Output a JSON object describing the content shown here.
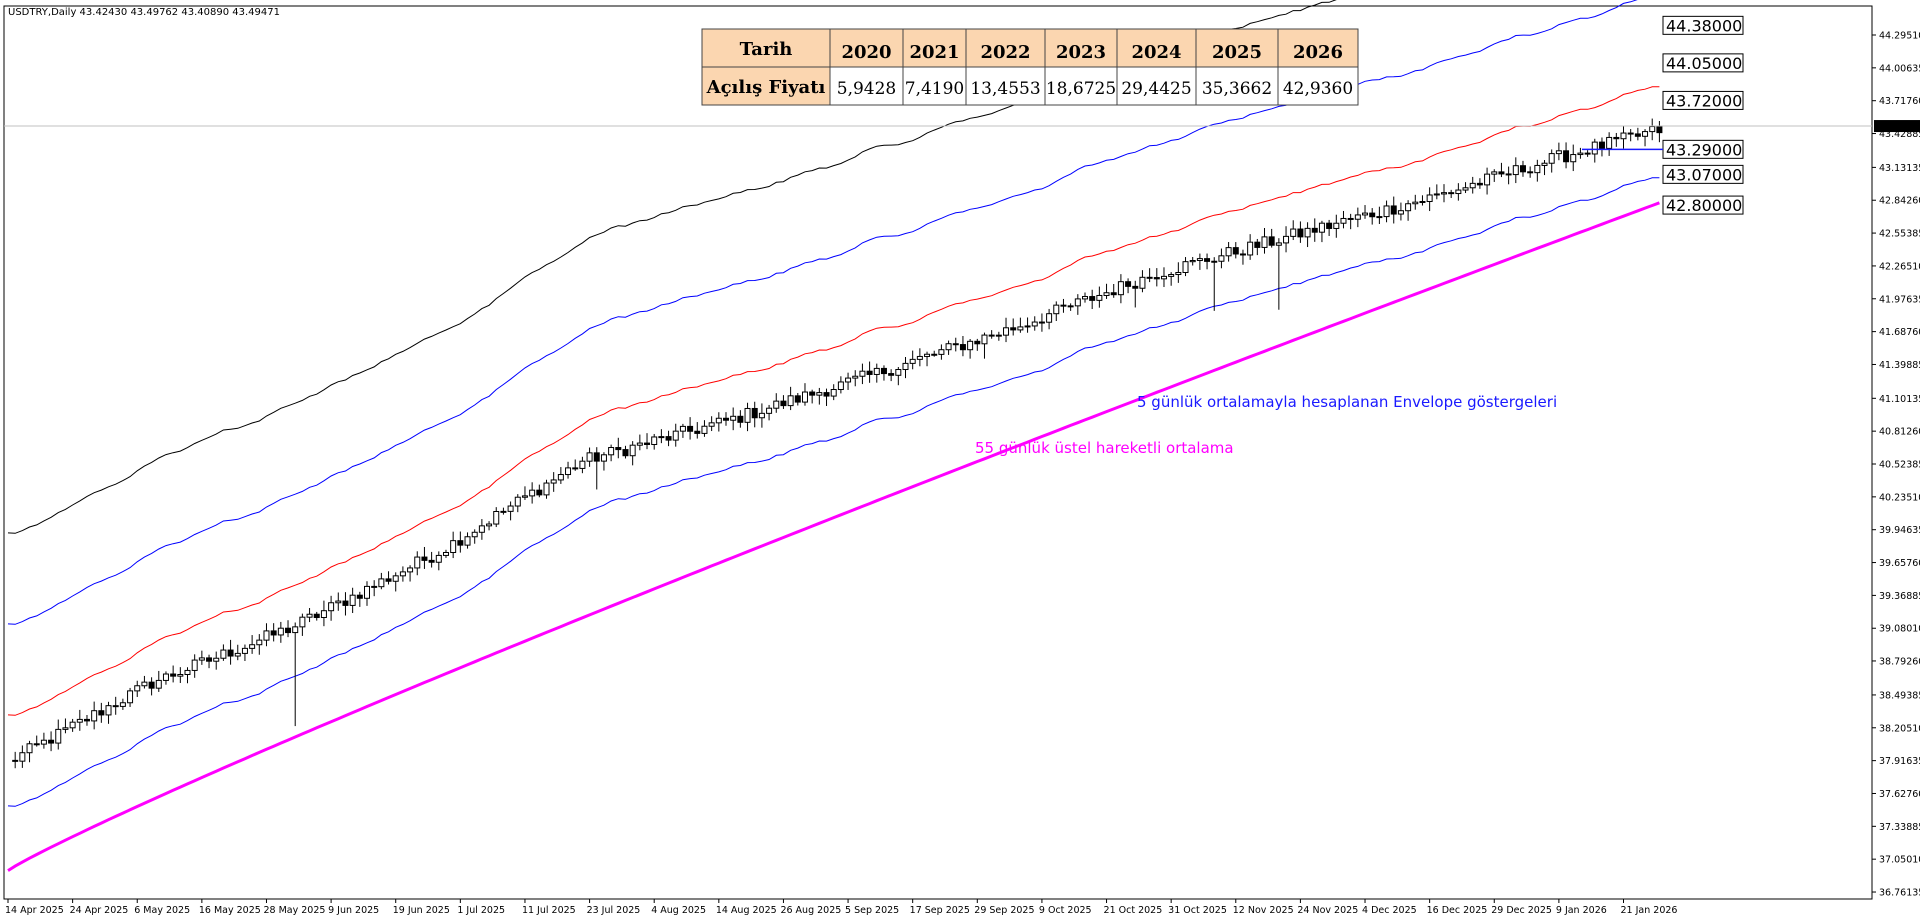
{
  "chart_data": {
    "type": "candlestick",
    "symbol_info": "USDTRY,Daily  43.42430 43.49762 43.40890 43.49471",
    "y_axis": {
      "ticks": [
        "44.29510",
        "44.00635",
        "43.71760",
        "43.42885",
        "43.13135",
        "42.84260",
        "42.55385",
        "42.26510",
        "41.97635",
        "41.68760",
        "41.39885",
        "41.10135",
        "40.81260",
        "40.52385",
        "40.23510",
        "39.94635",
        "39.65760",
        "39.36885",
        "39.08010",
        "38.79260",
        "38.49385",
        "38.20510",
        "37.91635",
        "37.62760",
        "37.33885",
        "37.05010",
        "36.76135"
      ],
      "ylim": [
        36.7,
        44.55
      ],
      "current_price": "43.49471"
    },
    "x_axis": {
      "ticks": [
        "14 Apr 2025",
        "24 Apr 2025",
        "6 May 2025",
        "16 May 2025",
        "28 May 2025",
        "9 Jun 2025",
        "19 Jun 2025",
        "1 Jul 2025",
        "11 Jul 2025",
        "23 Jul 2025",
        "4 Aug 2025",
        "14 Aug 2025",
        "26 Aug 2025",
        "5 Sep 2025",
        "17 Sep 2025",
        "29 Sep 2025",
        "9 Oct 2025",
        "21 Oct 2025",
        "31 Oct 2025",
        "12 Nov 2025",
        "24 Nov 2025",
        "4 Dec 2025",
        "16 Dec 2025",
        "29 Dec 2025",
        "9 Jan 2026",
        "21 Jan 2026"
      ]
    },
    "price_path": [
      [
        0,
        37.9
      ],
      [
        20,
        38.6
      ],
      [
        40,
        39.1
      ],
      [
        60,
        39.75
      ],
      [
        80,
        40.55
      ],
      [
        100,
        40.9
      ],
      [
        120,
        41.3
      ],
      [
        140,
        41.72
      ],
      [
        160,
        42.2
      ],
      [
        180,
        42.55
      ],
      [
        200,
        42.9
      ],
      [
        216,
        43.22
      ],
      [
        230,
        43.46
      ]
    ],
    "spike_low": [
      [
        40,
        38.22
      ],
      [
        82,
        40.3
      ],
      [
        136,
        41.45
      ],
      [
        157,
        41.9
      ],
      [
        168,
        41.87
      ],
      [
        177,
        41.88
      ]
    ],
    "ema_start": 36.95,
    "ema_end": 42.82,
    "envelope_offsets": [
      -0.4,
      0.4,
      1.2,
      2.0
    ],
    "annotations": [
      {
        "text": "5 günlük ortalamayla hesaplanan Envelope göstergeleri",
        "color": "#1a1aff"
      },
      {
        "text": "55 günlük üstel hareketli ortalama",
        "color": "#ff00ff"
      }
    ],
    "levels": [
      "44.38000",
      "44.05000",
      "43.72000",
      "43.29000",
      "43.07000",
      "42.80000"
    ],
    "table": {
      "header_label": "Tarih",
      "years": [
        "2020",
        "2021",
        "2022",
        "2023",
        "2024",
        "2025",
        "2026"
      ],
      "row_label": "Açılış Fiyatı",
      "values": [
        "5,9428",
        "7,4190",
        "13,4553",
        "18,6725",
        "29,4425",
        "35,3662",
        "42,9360"
      ]
    }
  }
}
